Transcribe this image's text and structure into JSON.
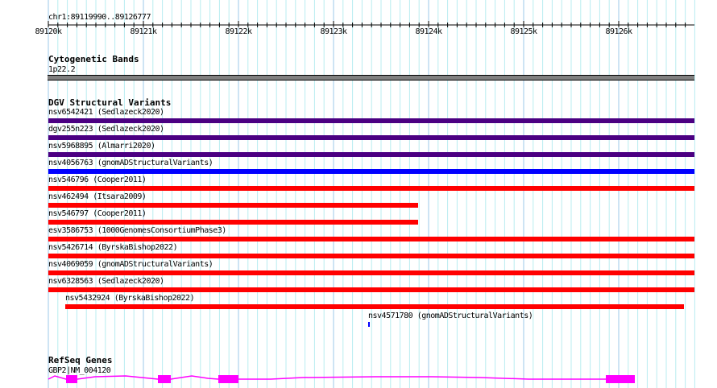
{
  "location": "chr1:89119990..89126777",
  "ruler": {
    "ticks": [
      "89120k",
      "89121k",
      "89122k",
      "89123k",
      "89124k",
      "89125k",
      "89126k"
    ]
  },
  "tracks": {
    "cytobands": {
      "title": "Cytogenetic Bands",
      "band": "1p22.2"
    },
    "dgv": {
      "title": "DGV Structural Variants",
      "features": [
        {
          "label": "nsv6542421 (Sedlazeck2020)",
          "color": "#4b0082"
        },
        {
          "label": "dgv255n223 (Sedlazeck2020)",
          "color": "#4b0082"
        },
        {
          "label": "nsv5968895 (Almarri2020)",
          "color": "#4b0082"
        },
        {
          "label": "nsv4056763 (gnomADStructuralVariants)",
          "color": "#0000ff"
        },
        {
          "label": "nsv546796 (Cooper2011)",
          "color": "#ff0000"
        },
        {
          "label": "nsv462494 (Itsara2009)",
          "color": "#ff0000"
        },
        {
          "label": "nsv546797 (Cooper2011)",
          "color": "#ff0000"
        },
        {
          "label": "esv3586753 (1000GenomesConsortiumPhase3)",
          "color": "#ff0000"
        },
        {
          "label": "nsv5426714 (ByrskaBishop2022)",
          "color": "#ff0000"
        },
        {
          "label": "nsv4069059 (gnomADStructuralVariants)",
          "color": "#ff0000"
        },
        {
          "label": "nsv6328563 (Sedlazeck2020)",
          "color": "#ff0000"
        },
        {
          "label": "nsv5432924 (ByrskaBishop2022)",
          "color": "#ff0000"
        },
        {
          "label": "nsv4571780 (gnomADStructuralVariants)",
          "color": "#0000ff"
        }
      ]
    },
    "refseq": {
      "title": "RefSeq Genes",
      "gene": "GBP2|NM_004120",
      "color": "#ff00ff"
    }
  }
}
